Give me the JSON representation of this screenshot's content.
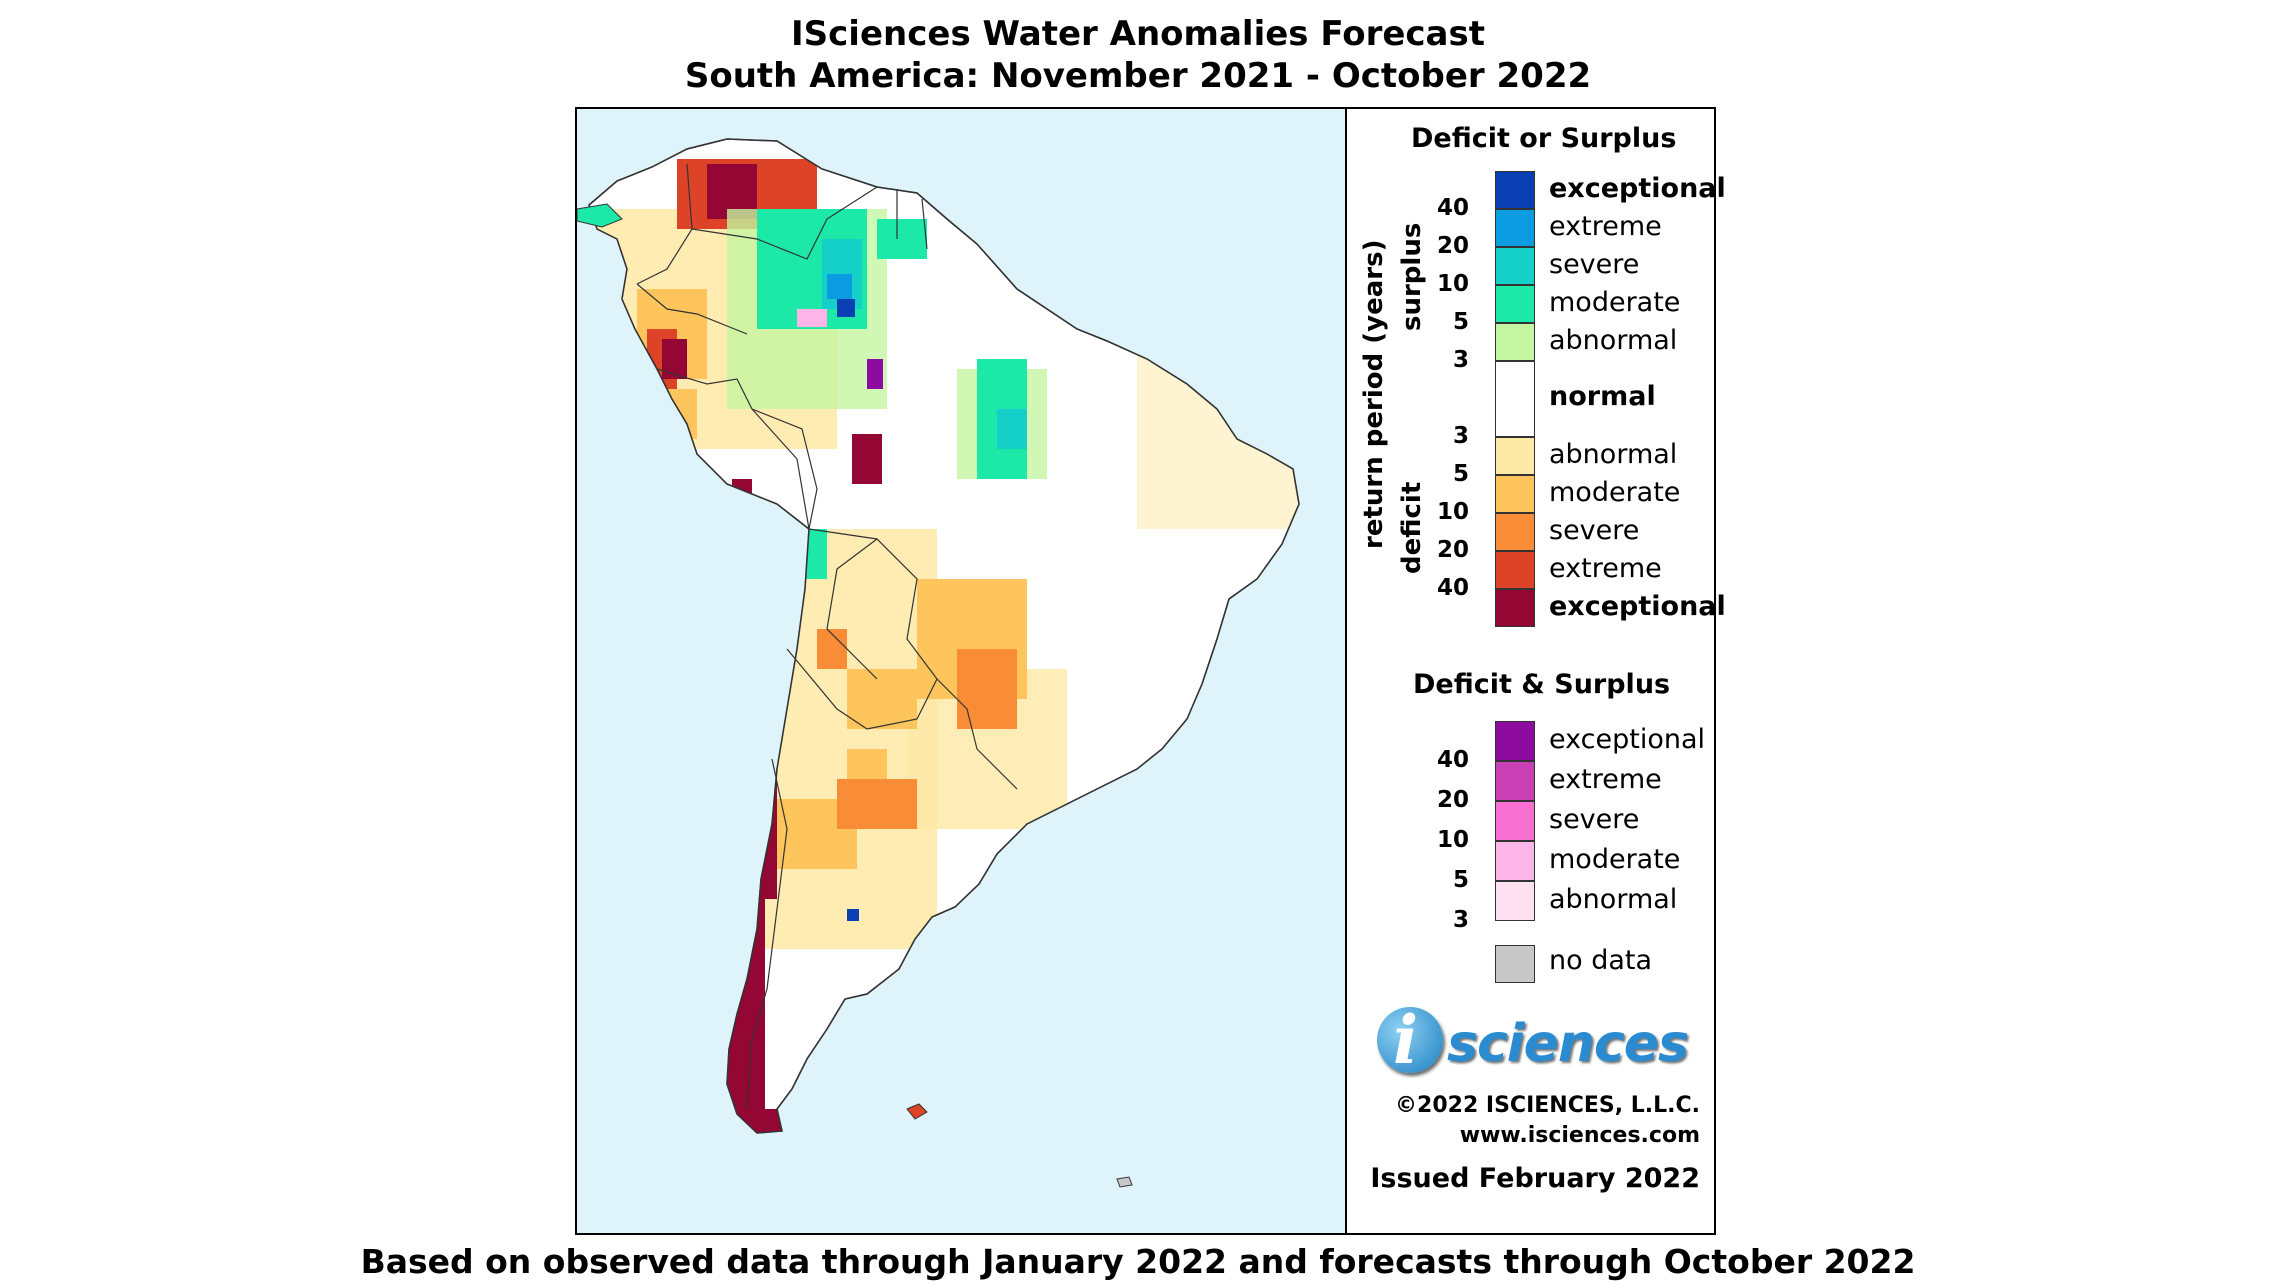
{
  "title": {
    "line1": "ISciences Water Anomalies Forecast",
    "line2": "South America: November 2021 - October 2022"
  },
  "footer": "Based on observed data through January 2022 and forecasts through October 2022",
  "legend": {
    "deficit_or_surplus": {
      "heading": "Deficit or Surplus",
      "axis_label": "return period (years)",
      "surplus_label": "surplus",
      "deficit_label": "deficit",
      "surplus_classes": [
        {
          "label": "exceptional",
          "color": "#0a3fb4",
          "bold": true
        },
        {
          "label": "extreme",
          "color": "#0b9be0",
          "bold": false
        },
        {
          "label": "severe",
          "color": "#14d0c8",
          "bold": false
        },
        {
          "label": "moderate",
          "color": "#1ce8a8",
          "bold": false
        },
        {
          "label": "abnormal",
          "color": "#c4f5a0",
          "bold": false
        }
      ],
      "normal": {
        "label": "normal",
        "color": "#ffffff"
      },
      "deficit_classes": [
        {
          "label": "abnormal",
          "color": "#ffe9a6",
          "bold": false
        },
        {
          "label": "moderate",
          "color": "#fdc55c",
          "bold": false
        },
        {
          "label": "severe",
          "color": "#f98c37",
          "bold": false
        },
        {
          "label": "extreme",
          "color": "#dd4326",
          "bold": false
        },
        {
          "label": "exceptional",
          "color": "#940735",
          "bold": true
        }
      ],
      "surplus_ticks": [
        "40",
        "20",
        "10",
        "5",
        "3"
      ],
      "deficit_ticks": [
        "3",
        "5",
        "10",
        "20",
        "40"
      ]
    },
    "deficit_and_surplus": {
      "heading": "Deficit & Surplus",
      "classes": [
        {
          "label": "exceptional",
          "color": "#8d0b9e"
        },
        {
          "label": "extreme",
          "color": "#c940b4"
        },
        {
          "label": "severe",
          "color": "#f76fd0"
        },
        {
          "label": "moderate",
          "color": "#fbb5e6"
        },
        {
          "label": "abnormal",
          "color": "#fde1f0"
        }
      ],
      "ticks": [
        "40",
        "20",
        "10",
        "5",
        "3"
      ]
    },
    "no_data": {
      "label": "no data",
      "color": "#c8c8c8"
    }
  },
  "branding": {
    "logo_i": "i",
    "logo_word": "sciences",
    "copyright": "©2022 ISCIENCES, L.L.C.",
    "website": "www.isciences.com",
    "issued": "Issued February 2022"
  }
}
